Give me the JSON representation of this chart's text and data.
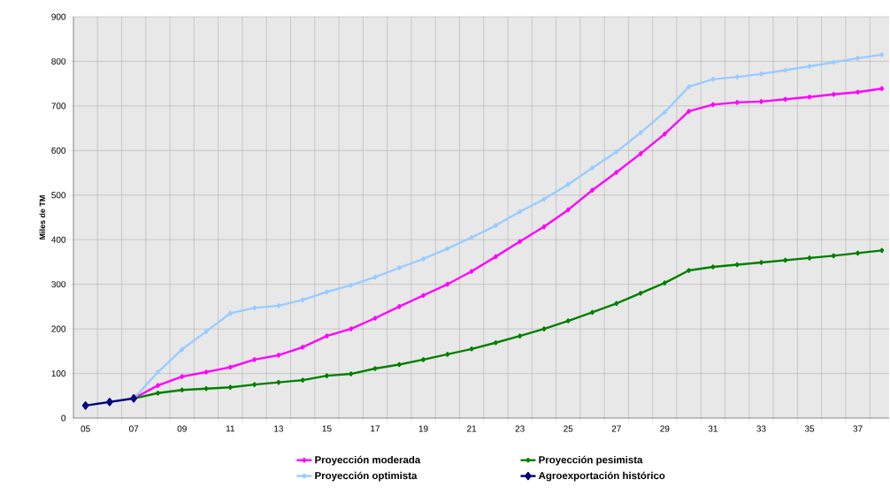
{
  "chart_data": {
    "type": "line",
    "ylabel": "Miles de TM",
    "categories": [
      "05",
      null,
      "07",
      null,
      "09",
      null,
      "11",
      null,
      "13",
      null,
      "15",
      null,
      "17",
      null,
      "19",
      null,
      "21",
      null,
      "23",
      null,
      "25",
      null,
      "27",
      null,
      "29",
      null,
      "31",
      null,
      "33",
      null,
      "35",
      null,
      "37",
      null
    ],
    "series": [
      {
        "name": "Proyección moderada",
        "color": "#ff00ff",
        "values": [
          null,
          null,
          44,
          73,
          93,
          103,
          114,
          131,
          141,
          159,
          184,
          200,
          224,
          250,
          275,
          300,
          329,
          362,
          396,
          429,
          467,
          511,
          551,
          593,
          637,
          688,
          703,
          708,
          710,
          715,
          720,
          726,
          731,
          739
        ]
      },
      {
        "name": "Proyección pesimista",
        "color": "#008000",
        "values": [
          null,
          null,
          44,
          56,
          63,
          66,
          69,
          75,
          80,
          85,
          95,
          99,
          111,
          120,
          131,
          143,
          155,
          169,
          184,
          200,
          218,
          237,
          257,
          280,
          303,
          331,
          339,
          344,
          349,
          354,
          359,
          364,
          370,
          376
        ]
      },
      {
        "name": "Proyección optimista",
        "color": "#99ccff",
        "values": [
          null,
          null,
          44,
          103,
          154,
          194,
          235,
          247,
          252,
          265,
          283,
          298,
          316,
          337,
          357,
          380,
          405,
          432,
          463,
          491,
          524,
          561,
          597,
          640,
          686,
          743,
          760,
          765,
          772,
          780,
          789,
          798,
          807,
          815
        ]
      },
      {
        "name": "Agroexportación histórico",
        "color": "#000080",
        "values": [
          28,
          36,
          44,
          null,
          null,
          null,
          null,
          null,
          null,
          null,
          null,
          null,
          null,
          null,
          null,
          null,
          null,
          null,
          null,
          null,
          null,
          null,
          null,
          null,
          null,
          null,
          null,
          null,
          null,
          null,
          null,
          null,
          null,
          null
        ]
      }
    ],
    "ylim": [
      0,
      900
    ],
    "yticks": [
      0,
      100,
      200,
      300,
      400,
      500,
      600,
      700,
      800,
      900
    ],
    "grid": true,
    "legend": "bottom",
    "marker": "diamond"
  }
}
